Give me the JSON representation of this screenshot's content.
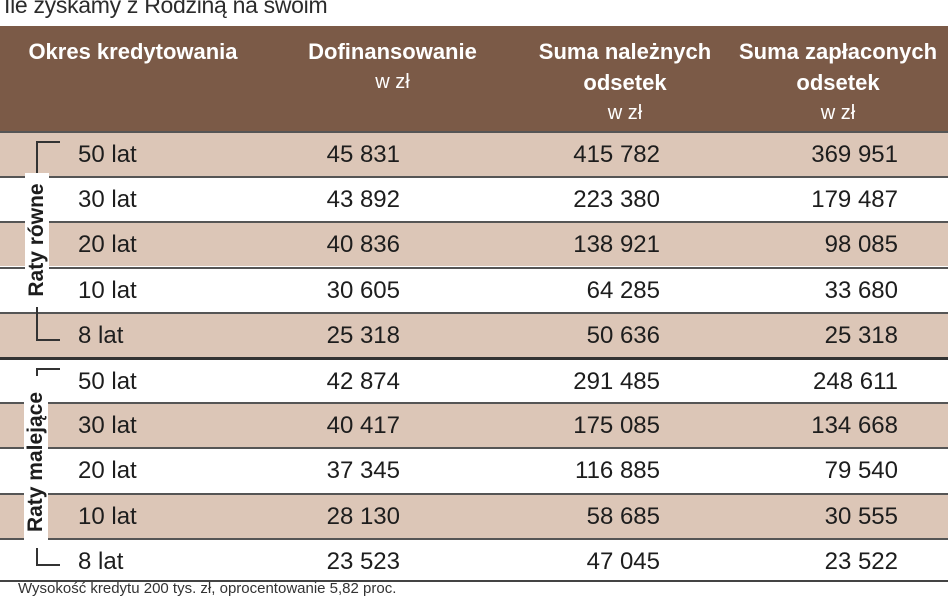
{
  "title": "Ile zyskamy z Rodziną na swoim",
  "header": {
    "col0": "Okres kredytowania",
    "col1": "Dofinansowanie",
    "col1_unit": "w zł",
    "col2": "Suma należnych odsetek",
    "col2_unit": "w zł",
    "col3": "Suma zapłaconych odsetek",
    "col3_unit": "w zł"
  },
  "groups": {
    "g0": "Raty równe",
    "g1": "Raty malejące"
  },
  "chart_data": {
    "type": "table",
    "title": "Ile zyskamy z Rodziną na swoim",
    "columns": [
      "Okres kredytowania",
      "Dofinansowanie w zł",
      "Suma należnych odsetek w zł",
      "Suma zapłaconych odsetek w zł"
    ],
    "rows": [
      {
        "group": "Raty równe",
        "period": "50 lat",
        "v1": "45 831",
        "v2": "415 782",
        "v3": "369 951"
      },
      {
        "group": "Raty równe",
        "period": "30 lat",
        "v1": "43 892",
        "v2": "223 380",
        "v3": "179 487"
      },
      {
        "group": "Raty równe",
        "period": "20 lat",
        "v1": "40 836",
        "v2": "138 921",
        "v3": "98 085"
      },
      {
        "group": "Raty równe",
        "period": "10 lat",
        "v1": "30 605",
        "v2": "64 285",
        "v3": "33 680"
      },
      {
        "group": "Raty równe",
        "period": "8 lat",
        "v1": "25 318",
        "v2": "50 636",
        "v3": "25 318"
      },
      {
        "group": "Raty malejące",
        "period": "50 lat",
        "v1": "42 874",
        "v2": "291 485",
        "v3": "248 611"
      },
      {
        "group": "Raty malejące",
        "period": "30 lat",
        "v1": "40 417",
        "v2": "175 085",
        "v3": "134 668"
      },
      {
        "group": "Raty malejące",
        "period": "20 lat",
        "v1": "37 345",
        "v2": "116 885",
        "v3": "79 540"
      },
      {
        "group": "Raty malejące",
        "period": "10 lat",
        "v1": "28 130",
        "v2": "58 685",
        "v3": "30 555"
      },
      {
        "group": "Raty malejące",
        "period": "8 lat",
        "v1": "23 523",
        "v2": "47 045",
        "v3": "23 522"
      }
    ]
  },
  "footer": "Wysokość kredytu 200 tys. zł, oprocentowanie 5,82 proc.",
  "colors": {
    "header_bg": "#7b5a47",
    "shaded_row": "#dcc6b7"
  }
}
